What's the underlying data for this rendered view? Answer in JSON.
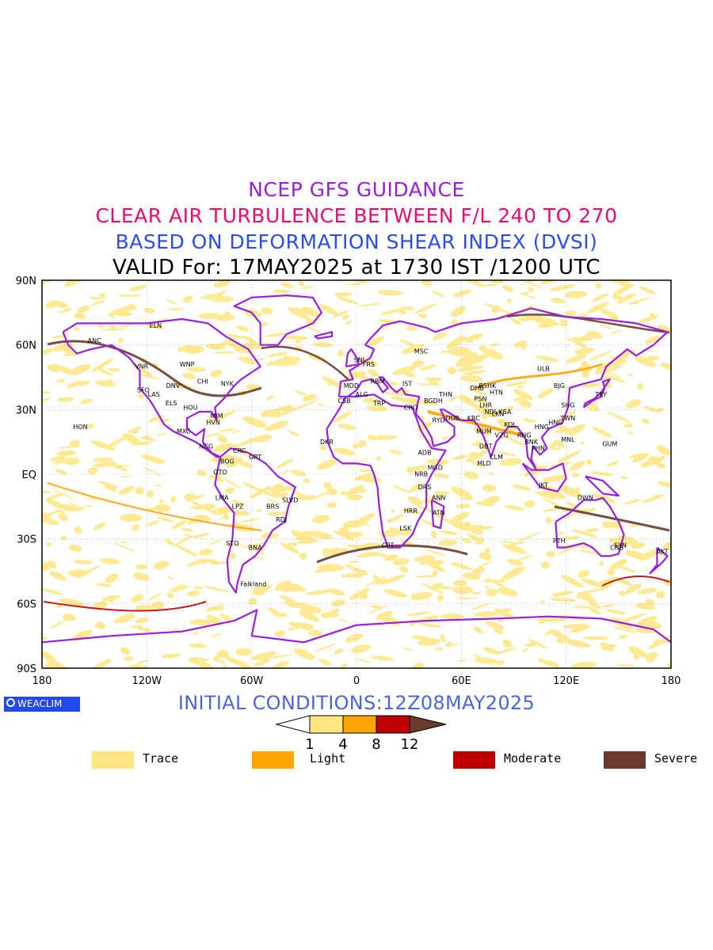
{
  "titles": {
    "line1": "NCEP GFS GUIDANCE",
    "line2": "CLEAR AIR TURBULENCE BETWEEN F/L 240 TO 270",
    "line3": "BASED ON DEFORMATION SHEAR INDEX (DVSI)",
    "line4": "VALID For: 17MAY2025 at 1730 IST /1200 UTC"
  },
  "axes": {
    "lat_labels": [
      "90N",
      "60N",
      "30N",
      "EQ",
      "30S",
      "60S",
      "90S"
    ],
    "lon_labels": [
      "180",
      "120W",
      "60W",
      "0",
      "60E",
      "120E",
      "180"
    ]
  },
  "stations": [
    {
      "name": "ANC",
      "lon": -150,
      "lat": 61
    },
    {
      "name": "ELN",
      "lon": -115,
      "lat": 68
    },
    {
      "name": "VNR",
      "lon": -123,
      "lat": 49
    },
    {
      "name": "WNP",
      "lon": -97,
      "lat": 50
    },
    {
      "name": "SFO",
      "lon": -122,
      "lat": 38
    },
    {
      "name": "LAS",
      "lon": -116,
      "lat": 36
    },
    {
      "name": "DNV",
      "lon": -105,
      "lat": 40
    },
    {
      "name": "CHI",
      "lon": -88,
      "lat": 42
    },
    {
      "name": "NYK",
      "lon": -74,
      "lat": 41
    },
    {
      "name": "ELS",
      "lon": -106,
      "lat": 32
    },
    {
      "name": "HOU",
      "lon": -95,
      "lat": 30
    },
    {
      "name": "MIM",
      "lon": -80,
      "lat": 26
    },
    {
      "name": "HVN",
      "lon": -82,
      "lat": 23
    },
    {
      "name": "HON",
      "lon": -158,
      "lat": 21
    },
    {
      "name": "MXC",
      "lon": -99,
      "lat": 19
    },
    {
      "name": "NCG",
      "lon": -86,
      "lat": 12
    },
    {
      "name": "CRC",
      "lon": -67,
      "lat": 10
    },
    {
      "name": "BOG",
      "lon": -74,
      "lat": 5
    },
    {
      "name": "GRT",
      "lon": -58,
      "lat": 7
    },
    {
      "name": "QTO",
      "lon": -78,
      "lat": 0
    },
    {
      "name": "LMA",
      "lon": -77,
      "lat": -12
    },
    {
      "name": "LPZ",
      "lon": -68,
      "lat": -16
    },
    {
      "name": "BRS",
      "lon": -48,
      "lat": -16
    },
    {
      "name": "SLVD",
      "lon": -38,
      "lat": -13
    },
    {
      "name": "RDJ",
      "lon": -43,
      "lat": -22
    },
    {
      "name": "STO",
      "lon": -71,
      "lat": -33
    },
    {
      "name": "BNA",
      "lon": -58,
      "lat": -35
    },
    {
      "name": "Falkland",
      "lon": -59,
      "lat": -52
    },
    {
      "name": "SNL",
      "lon": 2,
      "lat": 52
    },
    {
      "name": "FRS",
      "lon": 7,
      "lat": 50
    },
    {
      "name": "MSC",
      "lon": 37,
      "lat": 56
    },
    {
      "name": "MDD",
      "lon": -3,
      "lat": 40
    },
    {
      "name": "ALG",
      "lon": 3,
      "lat": 36
    },
    {
      "name": "RBM",
      "lon": 12,
      "lat": 42
    },
    {
      "name": "IST",
      "lon": 29,
      "lat": 41
    },
    {
      "name": "CSB",
      "lon": -7,
      "lat": 33
    },
    {
      "name": "TRP",
      "lon": 13,
      "lat": 32
    },
    {
      "name": "CRO",
      "lon": 31,
      "lat": 30
    },
    {
      "name": "BGDH",
      "lon": 44,
      "lat": 33
    },
    {
      "name": "THN",
      "lon": 51,
      "lat": 36
    },
    {
      "name": "RYD",
      "lon": 47,
      "lat": 24
    },
    {
      "name": "DUB",
      "lon": 55,
      "lat": 25
    },
    {
      "name": "KRC",
      "lon": 67,
      "lat": 25
    },
    {
      "name": "DHB",
      "lon": 69,
      "lat": 39
    },
    {
      "name": "BSHK",
      "lon": 75,
      "lat": 40
    },
    {
      "name": "HTN",
      "lon": 80,
      "lat": 37
    },
    {
      "name": "PSN",
      "lon": 71,
      "lat": 34
    },
    {
      "name": "LHR",
      "lon": 74,
      "lat": 31
    },
    {
      "name": "NDL",
      "lon": 77,
      "lat": 28
    },
    {
      "name": "LKN",
      "lon": 81,
      "lat": 27
    },
    {
      "name": "KSA",
      "lon": 85,
      "lat": 28
    },
    {
      "name": "MUM",
      "lon": 73,
      "lat": 19
    },
    {
      "name": "KOL",
      "lon": 88,
      "lat": 22
    },
    {
      "name": "VZG",
      "lon": 83,
      "lat": 17
    },
    {
      "name": "DBT",
      "lon": 74,
      "lat": 12
    },
    {
      "name": "CLM",
      "lon": 80,
      "lat": 7
    },
    {
      "name": "MLD",
      "lon": 73,
      "lat": 4
    },
    {
      "name": "ULB",
      "lon": 107,
      "lat": 48
    },
    {
      "name": "BJG",
      "lon": 116,
      "lat": 40
    },
    {
      "name": "SHG",
      "lon": 121,
      "lat": 31
    },
    {
      "name": "TKY",
      "lon": 140,
      "lat": 36
    },
    {
      "name": "TWN",
      "lon": 121,
      "lat": 25
    },
    {
      "name": "HNG",
      "lon": 106,
      "lat": 21
    },
    {
      "name": "HNG",
      "lon": 114,
      "lat": 23
    },
    {
      "name": "RNG",
      "lon": 96,
      "lat": 17
    },
    {
      "name": "BNK",
      "lon": 100,
      "lat": 14
    },
    {
      "name": "PHN",
      "lon": 104,
      "lat": 11
    },
    {
      "name": "MNL",
      "lon": 121,
      "lat": 15
    },
    {
      "name": "GUM",
      "lon": 145,
      "lat": 13
    },
    {
      "name": "JKT",
      "lon": 107,
      "lat": -6
    },
    {
      "name": "DWN",
      "lon": 131,
      "lat": -12
    },
    {
      "name": "PTH",
      "lon": 116,
      "lat": -32
    },
    {
      "name": "SYN",
      "lon": 151,
      "lat": -34
    },
    {
      "name": "CNB",
      "lon": 149,
      "lat": -35
    },
    {
      "name": "AKT",
      "lon": 175,
      "lat": -37
    },
    {
      "name": "ADB",
      "lon": 39,
      "lat": 9
    },
    {
      "name": "MGD",
      "lon": 45,
      "lat": 2
    },
    {
      "name": "NRB",
      "lon": 37,
      "lat": -1
    },
    {
      "name": "DRS",
      "lon": 39,
      "lat": -7
    },
    {
      "name": "ANN",
      "lon": 47,
      "lat": -12
    },
    {
      "name": "HRR",
      "lon": 31,
      "lat": -18
    },
    {
      "name": "ATN",
      "lon": 47,
      "lat": -19
    },
    {
      "name": "LSK",
      "lon": 28,
      "lat": -26
    },
    {
      "name": "CPT",
      "lon": 18,
      "lat": -34
    },
    {
      "name": "DKR",
      "lon": -17,
      "lat": 14
    }
  ],
  "initial": "INITIAL CONDITIONS:12Z08MAY2025",
  "logo_text": "WEACLIM",
  "colorbar": {
    "ticks": [
      "1",
      "4",
      "8",
      "12"
    ],
    "colors": [
      "#ffe680",
      "#ffa500",
      "#c00000",
      "#6b3a2c"
    ]
  },
  "legend": [
    {
      "label": "Trace",
      "color": "#ffe680"
    },
    {
      "label": "Light",
      "color": "#ffa500"
    },
    {
      "label": "Moderate",
      "color": "#c00000"
    },
    {
      "label": "Severe",
      "color": "#6b3a2c"
    }
  ]
}
